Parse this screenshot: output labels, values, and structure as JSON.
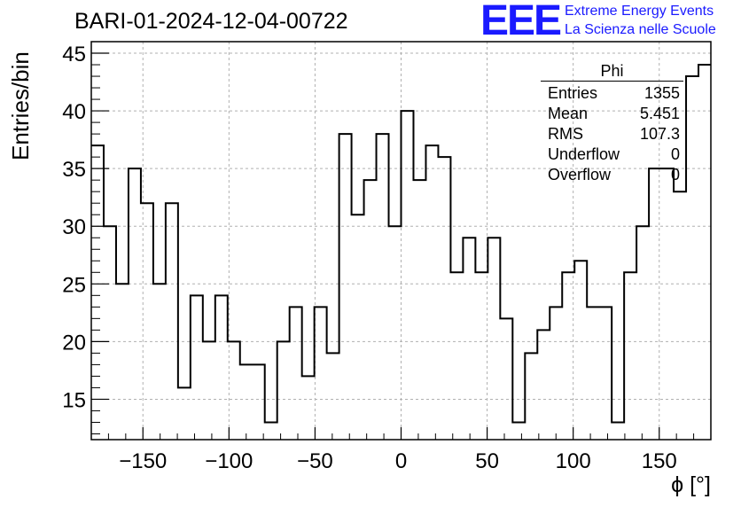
{
  "header": {
    "title": "BARI-01-2024-12-04-00722",
    "logo_text": "EEE",
    "logo_line1": "Extreme Energy Events",
    "logo_line2": "La Scienza nelle Scuole"
  },
  "stats_box": {
    "name": "Phi",
    "rows": [
      {
        "label": "Entries",
        "value": "1355"
      },
      {
        "label": "Mean",
        "value": "5.451"
      },
      {
        "label": "RMS",
        "value": "107.3"
      },
      {
        "label": "Underflow",
        "value": "0"
      },
      {
        "label": "Overflow",
        "value": "0"
      }
    ]
  },
  "chart_data": {
    "type": "bar",
    "title": "BARI-01-2024-12-04-00722",
    "xlabel": "ϕ [°]",
    "ylabel": "Entries/bin",
    "xlim": [
      -180,
      180
    ],
    "ylim": [
      11.5,
      46
    ],
    "x_ticks": [
      -150,
      -100,
      -50,
      0,
      50,
      100,
      150
    ],
    "y_ticks": [
      15,
      20,
      25,
      30,
      35,
      40,
      45
    ],
    "grid": true,
    "bin_width": 7.2,
    "values": [
      37,
      30,
      25,
      35,
      32,
      25,
      32,
      16,
      24,
      20,
      24,
      20,
      18,
      18,
      13,
      20,
      23,
      17,
      23,
      19,
      38,
      31,
      34,
      38,
      30,
      40,
      34,
      37,
      36,
      26,
      29,
      26,
      29,
      22,
      13,
      19,
      21,
      23,
      26,
      27,
      23,
      23,
      13,
      26,
      30,
      35,
      35,
      33,
      43,
      44
    ]
  }
}
